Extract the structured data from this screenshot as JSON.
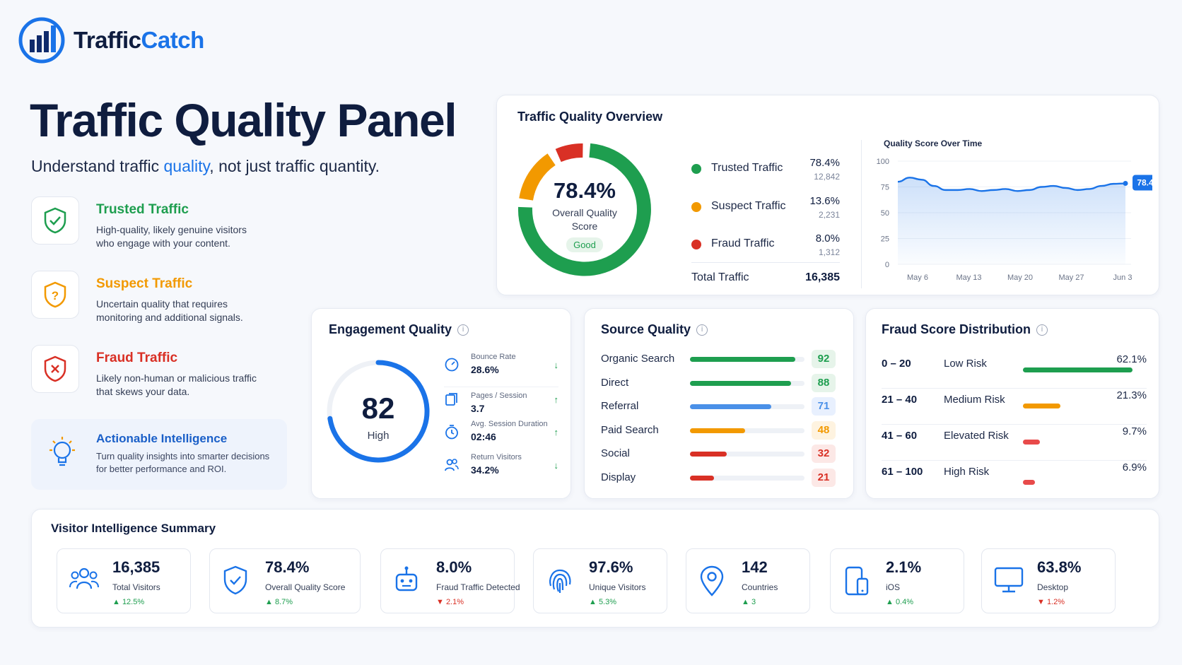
{
  "brand": {
    "name_part1": "Traffic",
    "name_part2": "Catch"
  },
  "header": {
    "title": "Traffic Quality Panel",
    "subtitle_pre": "Understand traffic ",
    "subtitle_hl": "quality",
    "subtitle_post": ", not just traffic quantity."
  },
  "categories": [
    {
      "title": "Trusted Traffic",
      "desc": "High-quality, likely genuine visitors who engage with your content.",
      "color": "#1e9e4f"
    },
    {
      "title": "Suspect Traffic",
      "desc": "Uncertain quality that requires monitoring and additional signals.",
      "color": "#f29900"
    },
    {
      "title": "Fraud Traffic",
      "desc": "Likely non-human or malicious traffic that skews your data.",
      "color": "#d93025"
    }
  ],
  "actionable": {
    "title": "Actionable Intelligence",
    "desc": "Turn quality insights into smarter decisions for better performance and ROI."
  },
  "overview": {
    "title": "Traffic Quality Overview",
    "score": "78.4%",
    "score_label": "Overall Quality Score",
    "status": "Good",
    "legend": [
      {
        "label": "Trusted Traffic",
        "pct": "78.4%",
        "count": "12,842",
        "color": "#1e9e4f"
      },
      {
        "label": "Suspect Traffic",
        "pct": "13.6%",
        "count": "2,231",
        "color": "#f29900"
      },
      {
        "label": "Fraud Traffic",
        "pct": "8.0%",
        "count": "1,312",
        "color": "#d93025"
      }
    ],
    "total_label": "Total Traffic",
    "total_value": "16,385"
  },
  "chart_data": {
    "type": "area",
    "title": "Quality Score Over Time",
    "ylim": [
      0,
      100
    ],
    "yticks": [
      "100",
      "75",
      "50",
      "25",
      "0"
    ],
    "xticks": [
      "May 6",
      "May 13",
      "May 20",
      "May 27",
      "Jun 3"
    ],
    "y": [
      80,
      84,
      82,
      76,
      72,
      72,
      73,
      71,
      72,
      73,
      71,
      72,
      75,
      76,
      74,
      72,
      73,
      76,
      78,
      78.4
    ],
    "last_label": "78.4",
    "color": "#1a73e8"
  },
  "engagement": {
    "title": "Engagement Quality",
    "score": "82",
    "score_label": "High",
    "metrics": [
      {
        "label": "Bounce Rate",
        "value": "28.6%",
        "arrow": "↓"
      },
      {
        "label": "Pages / Session",
        "value": "3.7",
        "arrow": "↑"
      },
      {
        "label": "Avg. Session Duration",
        "value": "02:46",
        "arrow": "↑"
      },
      {
        "label": "Return Visitors",
        "value": "34.2%",
        "arrow": "↓"
      }
    ]
  },
  "source_quality": {
    "title": "Source Quality",
    "rows": [
      {
        "label": "Organic Search",
        "value": "92",
        "color": "#1e9e4f",
        "bg": "#e6f4ea"
      },
      {
        "label": "Direct",
        "value": "88",
        "color": "#1e9e4f",
        "bg": "#e6f4ea"
      },
      {
        "label": "Referral",
        "value": "71",
        "color": "#4a90e8",
        "bg": "#e8f0fe"
      },
      {
        "label": "Paid Search",
        "value": "48",
        "color": "#f29900",
        "bg": "#fef3e0"
      },
      {
        "label": "Social",
        "value": "32",
        "color": "#d93025",
        "bg": "#fce8e6"
      },
      {
        "label": "Display",
        "value": "21",
        "color": "#d93025",
        "bg": "#fce8e6"
      }
    ]
  },
  "fraud_distribution": {
    "title": "Fraud Score Distribution",
    "rows": [
      {
        "range": "0 – 20",
        "label": "Low Risk",
        "pct": "62.1%",
        "value": 62.1,
        "color": "#1e9e4f"
      },
      {
        "range": "21 – 40",
        "label": "Medium Risk",
        "pct": "21.3%",
        "value": 21.3,
        "color": "#f29900"
      },
      {
        "range": "41 – 60",
        "label": "Elevated Risk",
        "pct": "9.7%",
        "value": 9.7,
        "color": "#e84a4a"
      },
      {
        "range": "61 – 100",
        "label": "High Risk",
        "pct": "6.9%",
        "value": 6.9,
        "color": "#e84a4a"
      }
    ]
  },
  "visitor_summary": {
    "title": "Visitor Intelligence Summary",
    "items": [
      {
        "icon": "users-icon",
        "value": "16,385",
        "label": "Total Visitors",
        "delta": "▲ 12.5%",
        "dir": "up"
      },
      {
        "icon": "shield-check-icon",
        "value": "78.4%",
        "label": "Overall Quality Score",
        "delta": "▲ 8.7%",
        "dir": "up"
      },
      {
        "icon": "robot-icon",
        "value": "8.0%",
        "label": "Fraud Traffic Detected",
        "delta": "▼ 2.1%",
        "dir": "down"
      },
      {
        "icon": "fingerprint-icon",
        "value": "97.6%",
        "label": "Unique Visitors",
        "delta": "▲ 5.3%",
        "dir": "up"
      },
      {
        "icon": "location-pin-icon",
        "value": "142",
        "label": "Countries",
        "delta": "▲ 3",
        "dir": "up"
      },
      {
        "icon": "mobile-icon",
        "value": "2.1%",
        "label": "iOS",
        "delta": "▲ 0.4%",
        "dir": "up"
      },
      {
        "icon": "desktop-icon",
        "value": "63.8%",
        "label": "Desktop",
        "delta": "▼ 1.2%",
        "dir": "down"
      }
    ]
  }
}
